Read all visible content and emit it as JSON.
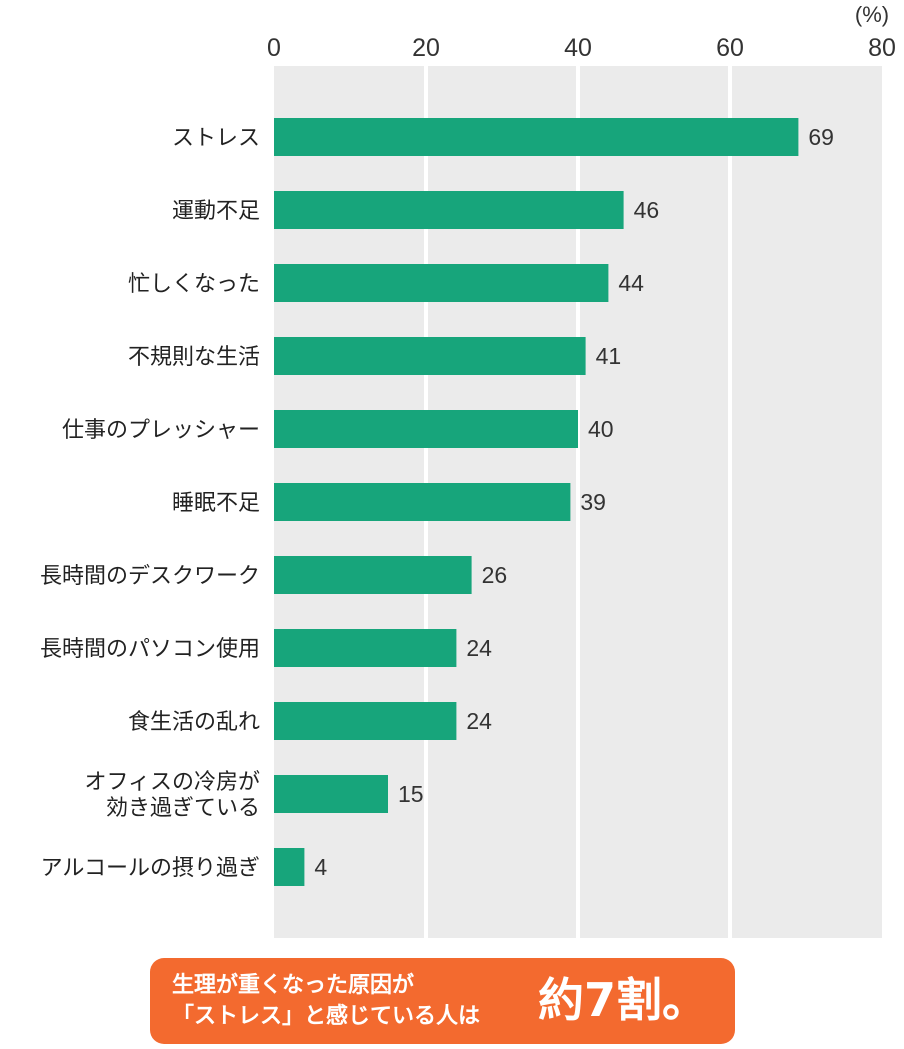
{
  "chart_data": {
    "type": "bar",
    "orientation": "horizontal",
    "unit": "(%)",
    "xlim": [
      0,
      80
    ],
    "x_ticks": [
      "0",
      "20",
      "40",
      "60",
      "80"
    ],
    "categories": [
      [
        "ストレス"
      ],
      [
        "運動不足"
      ],
      [
        "忙しくなった"
      ],
      [
        "不規則な生活"
      ],
      [
        "仕事のプレッシャー"
      ],
      [
        "睡眠不足"
      ],
      [
        "長時間のデスクワーク"
      ],
      [
        "長時間のパソコン使用"
      ],
      [
        "食生活の乱れ"
      ],
      [
        "オフィスの冷房が",
        "効き過ぎている"
      ],
      [
        "アルコールの摂り過ぎ"
      ]
    ],
    "values": [
      69,
      46,
      44,
      41,
      40,
      39,
      26,
      24,
      24,
      15,
      4
    ],
    "grid": true,
    "colors": {
      "bar": "#17a57b",
      "plot_background": "#ebebeb",
      "gridline": "#ffffff"
    }
  },
  "callout": {
    "line1": "生理が重くなった原因が",
    "line2": "「ストレス」と感じている人は",
    "highlight": "約7割。",
    "color": "#f36a2f"
  }
}
